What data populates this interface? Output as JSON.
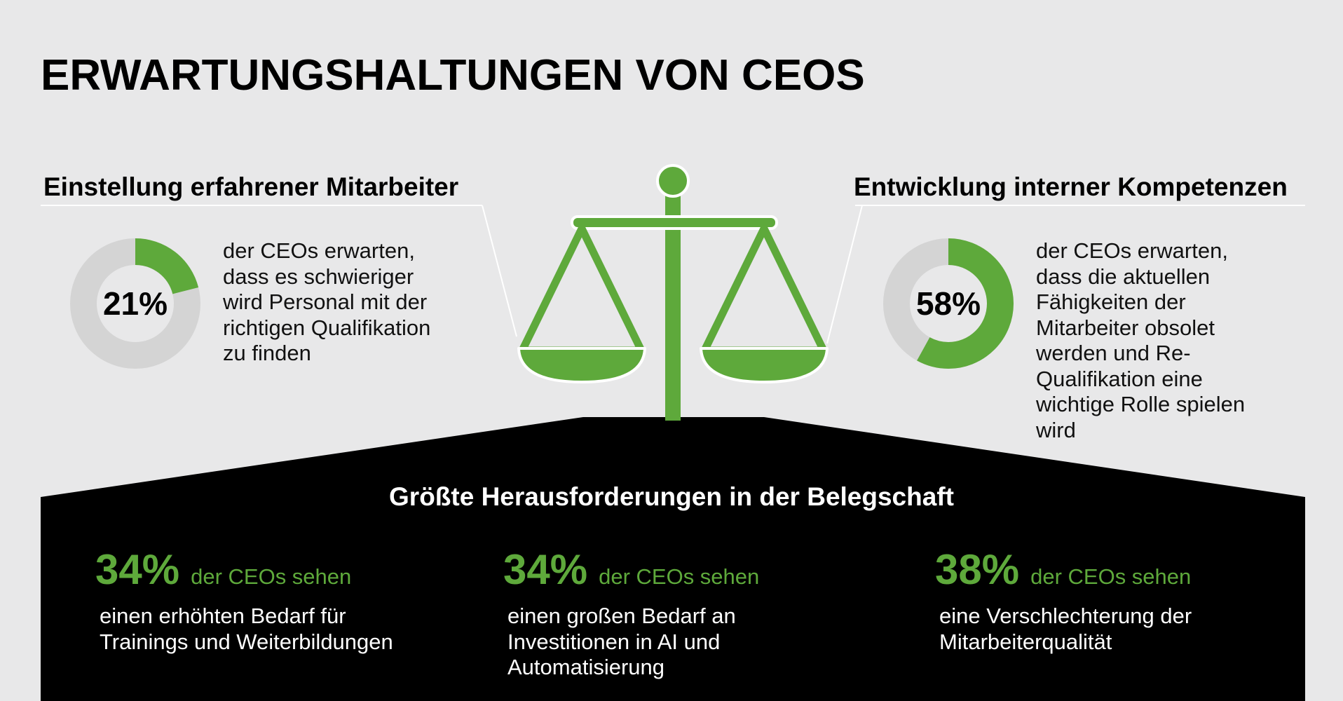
{
  "title": "ERWARTUNGSHALTUNGEN VON CEOS",
  "colors": {
    "accent": "#5ea93b",
    "donut_track": "#d4d4d4",
    "background": "#e8e8e9",
    "panel": "#000000"
  },
  "left_section": {
    "heading": "Einstellung erfahrener Mitarbeiter",
    "percent_label": "21%",
    "percent_value": 21,
    "description": "der CEOs erwarten, dass es schwieriger wird Personal mit der richtigen Qualifikation zu finden"
  },
  "right_section": {
    "heading": "Entwicklung interner Kompetenzen",
    "percent_label": "58%",
    "percent_value": 58,
    "description": "der CEOs erwarten, dass die aktuellen Fähigkeiten der Mitarbeiter obsolet werden und Re-Qualifikation eine wichtige Rolle spielen wird"
  },
  "center_icon": "scales-of-justice-icon",
  "challenges": {
    "heading": "Größte Herausforderungen in der Belegschaft",
    "items": [
      {
        "percent": "34%",
        "subtitle": "der CEOs sehen",
        "description": "einen erhöhten Bedarf für Trainings und Weiterbildungen"
      },
      {
        "percent": "34%",
        "subtitle": "der CEOs sehen",
        "description": "einen großen Bedarf an Investitionen in AI und Automatisierung"
      },
      {
        "percent": "38%",
        "subtitle": "der CEOs sehen",
        "description": "eine Verschlechterung der Mitarbeiterqualität"
      }
    ]
  }
}
